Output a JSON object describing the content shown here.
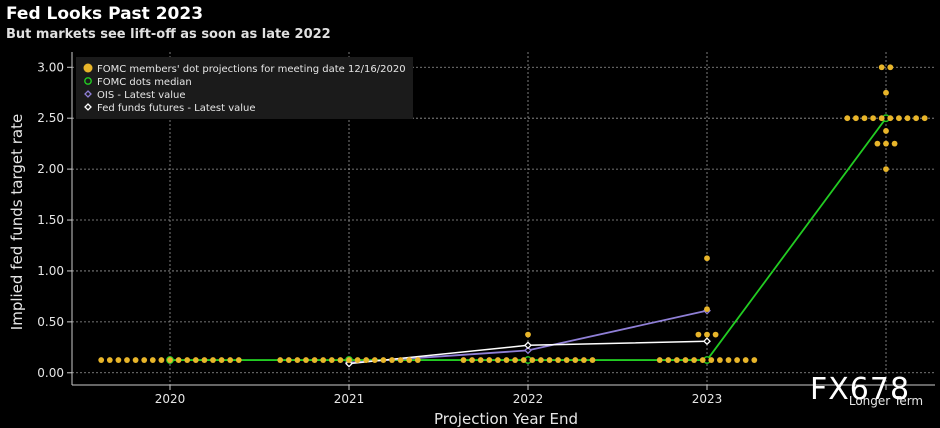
{
  "header": {
    "title": "Fed Looks Past 2023",
    "subtitle": "But markets see lift-off as soon as late 2022"
  },
  "watermark": "FX678",
  "chart_data": {
    "type": "scatter",
    "title": "Fed Looks Past 2023",
    "subtitle": "But markets see lift-off as soon as late 2022",
    "xlabel": "Projection Year End",
    "ylabel": "Implied fed funds target rate",
    "categories": [
      "2020",
      "2021",
      "2022",
      "2023",
      "Longer Term"
    ],
    "yticks": [
      "0.00",
      "0.50",
      "1.00",
      "1.50",
      "2.00",
      "2.50",
      "3.00"
    ],
    "ylim": [
      -0.12,
      3.15
    ],
    "grid": true,
    "legend_position": "top-left",
    "colors": {
      "dots": "#e8b52a",
      "median": "#22cc22",
      "ois": "#8f7fd6",
      "futures": "#ffffff",
      "grid": "#9a9a9a"
    },
    "legend": [
      "FOMC members' dot projections for meeting date 12/16/2020",
      "FOMC dots median",
      "OIS - Latest value",
      "Fed funds futures - Latest value"
    ],
    "dots": [
      {
        "x": "2020",
        "values": [
          {
            "y": 0.125,
            "count": 17
          }
        ]
      },
      {
        "x": "2021",
        "values": [
          {
            "y": 0.125,
            "count": 17
          }
        ]
      },
      {
        "x": "2022",
        "values": [
          {
            "y": 0.375,
            "count": 1
          },
          {
            "y": 0.125,
            "count": 16
          }
        ]
      },
      {
        "x": "2023",
        "values": [
          {
            "y": 1.125,
            "count": 1
          },
          {
            "y": 0.625,
            "count": 1
          },
          {
            "y": 0.375,
            "count": 3
          },
          {
            "y": 0.125,
            "count": 12
          }
        ]
      },
      {
        "x": "Longer Term",
        "values": [
          {
            "y": 3.0,
            "count": 2
          },
          {
            "y": 2.75,
            "count": 1
          },
          {
            "y": 2.5,
            "count": 10
          },
          {
            "y": 2.375,
            "count": 1
          },
          {
            "y": 2.25,
            "count": 3
          },
          {
            "y": 2.0,
            "count": 1
          }
        ]
      }
    ],
    "series": [
      {
        "name": "FOMC dots median",
        "x": [
          "2020",
          "2021",
          "2022",
          "2023",
          "Longer Term"
        ],
        "values": [
          0.125,
          0.125,
          0.125,
          0.125,
          2.5
        ]
      },
      {
        "name": "OIS - Latest value",
        "x": [
          "2021",
          "2022",
          "2023"
        ],
        "values": [
          0.1,
          0.22,
          0.61
        ]
      },
      {
        "name": "Fed funds futures - Latest value",
        "x": [
          "2021",
          "2022",
          "2023"
        ],
        "values": [
          0.09,
          0.27,
          0.31
        ]
      }
    ]
  }
}
